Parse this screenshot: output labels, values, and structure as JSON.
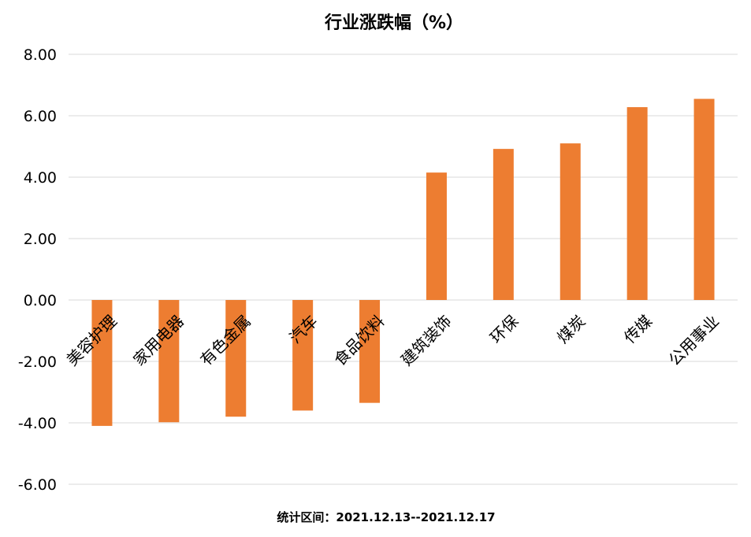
{
  "chart_data": {
    "type": "bar",
    "title": "行业涨跌幅（%）",
    "categories": [
      "美容护理",
      "家用电器",
      "有色金属",
      "汽车",
      "食品饮料",
      "建筑装饰",
      "环保",
      "煤炭",
      "传媒",
      "公用事业"
    ],
    "series": [
      {
        "values": [
          -4.1,
          -3.98,
          -3.8,
          -3.6,
          -3.35,
          4.15,
          4.92,
          5.1,
          6.28,
          6.55
        ],
        "color": "#ED7D31"
      }
    ],
    "ylim": [
      -6,
      8
    ],
    "yticks": [
      "8.00",
      "6.00",
      "4.00",
      "2.00",
      "0.00",
      "-2.00",
      "-4.00",
      "-6.00"
    ],
    "ytick_values": [
      8,
      6,
      4,
      2,
      0,
      -2,
      -4,
      -6
    ],
    "grid": true,
    "legend": "none",
    "footnote": "统计区间：2021.12.13--2021.12.17"
  }
}
